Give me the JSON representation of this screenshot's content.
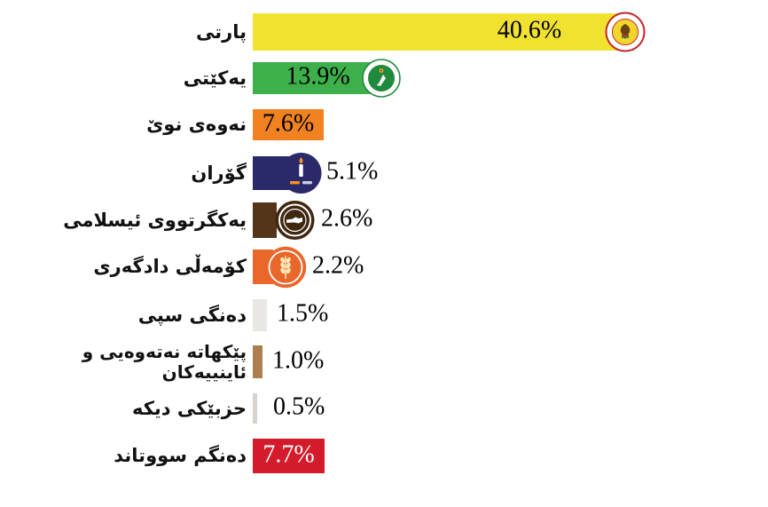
{
  "chart_data": {
    "type": "bar",
    "orientation": "horizontal",
    "title": "",
    "xlabel": "",
    "ylabel": "",
    "axes_visible": false,
    "grid": false,
    "value_unit": "%",
    "xlim": [
      0,
      42
    ],
    "categories": [
      "پارتی",
      "یەکێتی",
      "نەوەی نوێ",
      "گۆران",
      "یەکگرتووی ئیسلامی",
      "کۆمەڵی دادگەری",
      "دەنگی سپی",
      "پێکهاتە نەتەوەیی و ئاینییەکان",
      "حزبێکی دیکە",
      "دەنگم سووتاند"
    ],
    "values": [
      40.6,
      13.9,
      7.6,
      5.1,
      2.6,
      2.2,
      1.5,
      1.0,
      0.5,
      7.7
    ],
    "rows": [
      {
        "label": "پارتی",
        "value": 40.6,
        "value_label": "40.6%",
        "color": "#f1e230",
        "value_label_color": "#000000",
        "value_label_position": "inside",
        "logo": "kdp-logo"
      },
      {
        "label": "یەکێتی",
        "value": 13.9,
        "value_label": "13.9%",
        "color": "#3eb04b",
        "value_label_color": "#000000",
        "value_label_position": "inside",
        "logo": "puk-logo"
      },
      {
        "label": "نەوەی نوێ",
        "value": 7.6,
        "value_label": "7.6%",
        "color": "#f08221",
        "value_label_color": "#000000",
        "value_label_position": "inside",
        "logo": null
      },
      {
        "label": "گۆران",
        "value": 5.1,
        "value_label": "5.1%",
        "color": "#2a2a6a",
        "value_label_color": "#000000",
        "value_label_position": "outside",
        "logo": "gorran-logo"
      },
      {
        "label": "یەکگرتووی ئیسلامی",
        "value": 2.6,
        "value_label": "2.6%",
        "color": "#54351a",
        "value_label_color": "#000000",
        "value_label_position": "outside",
        "logo": "yekgirtu-logo"
      },
      {
        "label": "کۆمەڵی دادگەری",
        "value": 2.2,
        "value_label": "2.2%",
        "color": "#e9672b",
        "value_label_color": "#000000",
        "value_label_position": "outside",
        "logo": "komal-logo"
      },
      {
        "label": "دەنگی سپی",
        "value": 1.5,
        "value_label": "1.5%",
        "color": "#e9e7e4",
        "value_label_color": "#000000",
        "value_label_position": "outside",
        "logo": null
      },
      {
        "label": "پێکهاتە نەتەوەیی و ئاینییەکان",
        "value": 1.0,
        "value_label": "1.0%",
        "color": "#ad7f4e",
        "value_label_color": "#000000",
        "value_label_position": "outside",
        "logo": null
      },
      {
        "label": "حزبێکی دیکە",
        "value": 0.5,
        "value_label": "0.5%",
        "color": "#d6d3d0",
        "value_label_color": "#000000",
        "value_label_position": "outside",
        "logo": null
      },
      {
        "label": "دەنگم سووتاند",
        "value": 7.7,
        "value_label": "7.7%",
        "color": "#d31b2c",
        "value_label_color": "#ffffff",
        "value_label_position": "inside",
        "logo": null
      }
    ],
    "logo_colors": {
      "kdp_ring": "#c32b2b",
      "kdp_center": "#f3d62c",
      "puk_ring": "#1f8a3b",
      "puk_center": "#1f8a3b",
      "gorran_circle": "#2a2a6a",
      "gorran_flame": "#f7941d",
      "yekgirtu_circle": "#3f2710",
      "komal_circle": "#e9672b"
    }
  }
}
